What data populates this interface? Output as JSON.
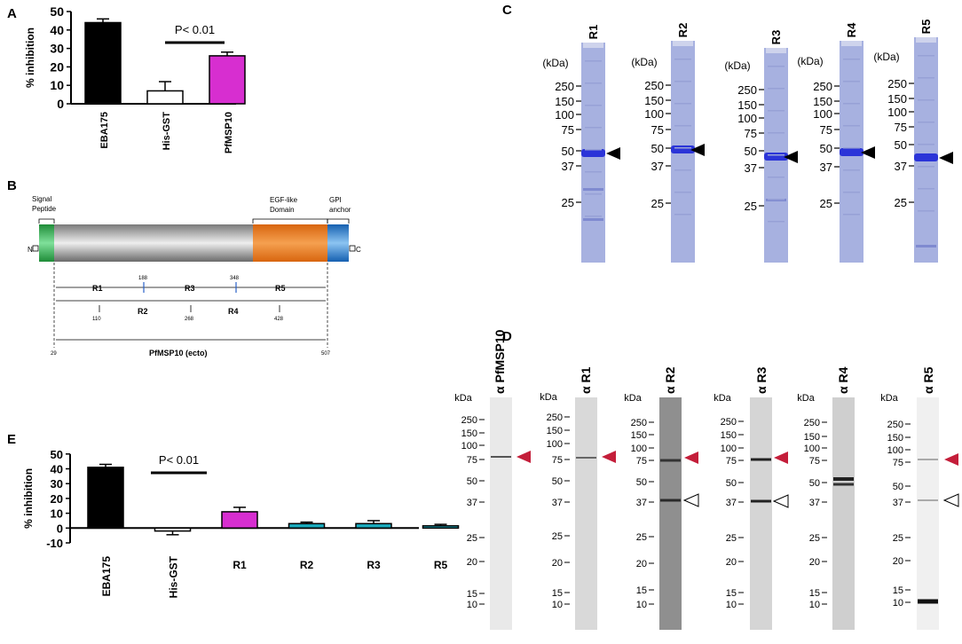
{
  "panels": {
    "A": "A",
    "B": "B",
    "C": "C",
    "D": "D",
    "E": "E"
  },
  "chart_data": [
    {
      "type": "bar",
      "id": "panel-A",
      "ylabel": "% inhibition",
      "ylim": [
        0,
        50
      ],
      "yticks": [
        "0",
        "10",
        "20",
        "30",
        "40",
        "50"
      ],
      "categories": [
        "EBA175",
        "His-GST",
        "PfMSP10"
      ],
      "values": [
        44,
        7,
        26
      ],
      "errors": [
        2,
        5,
        2
      ],
      "colors": [
        "#000000",
        "#ffffff",
        "#d72ed0"
      ],
      "significance": "P< 0.01"
    },
    {
      "type": "bar",
      "id": "panel-E",
      "ylabel": "% inhibition",
      "ylim": [
        -10,
        50
      ],
      "yticks": [
        "-10",
        "0",
        "10",
        "20",
        "30",
        "40",
        "50"
      ],
      "categories": [
        "EBA175",
        "His-GST",
        "R1",
        "R2",
        "R3",
        "R5"
      ],
      "values": [
        41,
        -2,
        11,
        3,
        3,
        1.5
      ],
      "errors": [
        2,
        2.5,
        3,
        1,
        2,
        1
      ],
      "colors": [
        "#000000",
        "#ffffff",
        "#d72ed0",
        "#19a9bb",
        "#19a9bb",
        "#19a9bb"
      ],
      "significance": "P< 0.01"
    }
  ],
  "schematic": {
    "signal_peptide": "Signal\nPeptide",
    "egf_domain": "EGF-like\nDomain",
    "gpi_anchor": "GPI\nanchor",
    "n_term": "N",
    "c_term": "C",
    "regions_top": [
      "R1",
      "R3",
      "R5"
    ],
    "regions_bottom": [
      "R2",
      "R4"
    ],
    "positions_top": [
      "188",
      "348"
    ],
    "positions_bottom": [
      "110",
      "268",
      "428"
    ],
    "start": "29",
    "end": "507",
    "ecto_label": "PfMSP10 (ecto)",
    "colors": {
      "signal": "#2eaa4a",
      "egf": "#ea7a1c",
      "gpi": "#1f77c8",
      "body": "#9a9a9a"
    }
  },
  "gels_C": {
    "unit": "(kDa)",
    "markers": [
      "250",
      "150",
      "100",
      "75",
      "50",
      "37",
      "25"
    ],
    "lanes": [
      "R1",
      "R2",
      "R3",
      "R4",
      "R5"
    ]
  },
  "blots_D": {
    "unit": "kDa",
    "markers": [
      "250",
      "150",
      "100",
      "75",
      "50",
      "37",
      "25",
      "20",
      "15",
      "10"
    ],
    "antibodies": [
      "α PfMSP10",
      "α R1",
      "α R2",
      "α R3",
      "α R4",
      "α R5"
    ]
  }
}
